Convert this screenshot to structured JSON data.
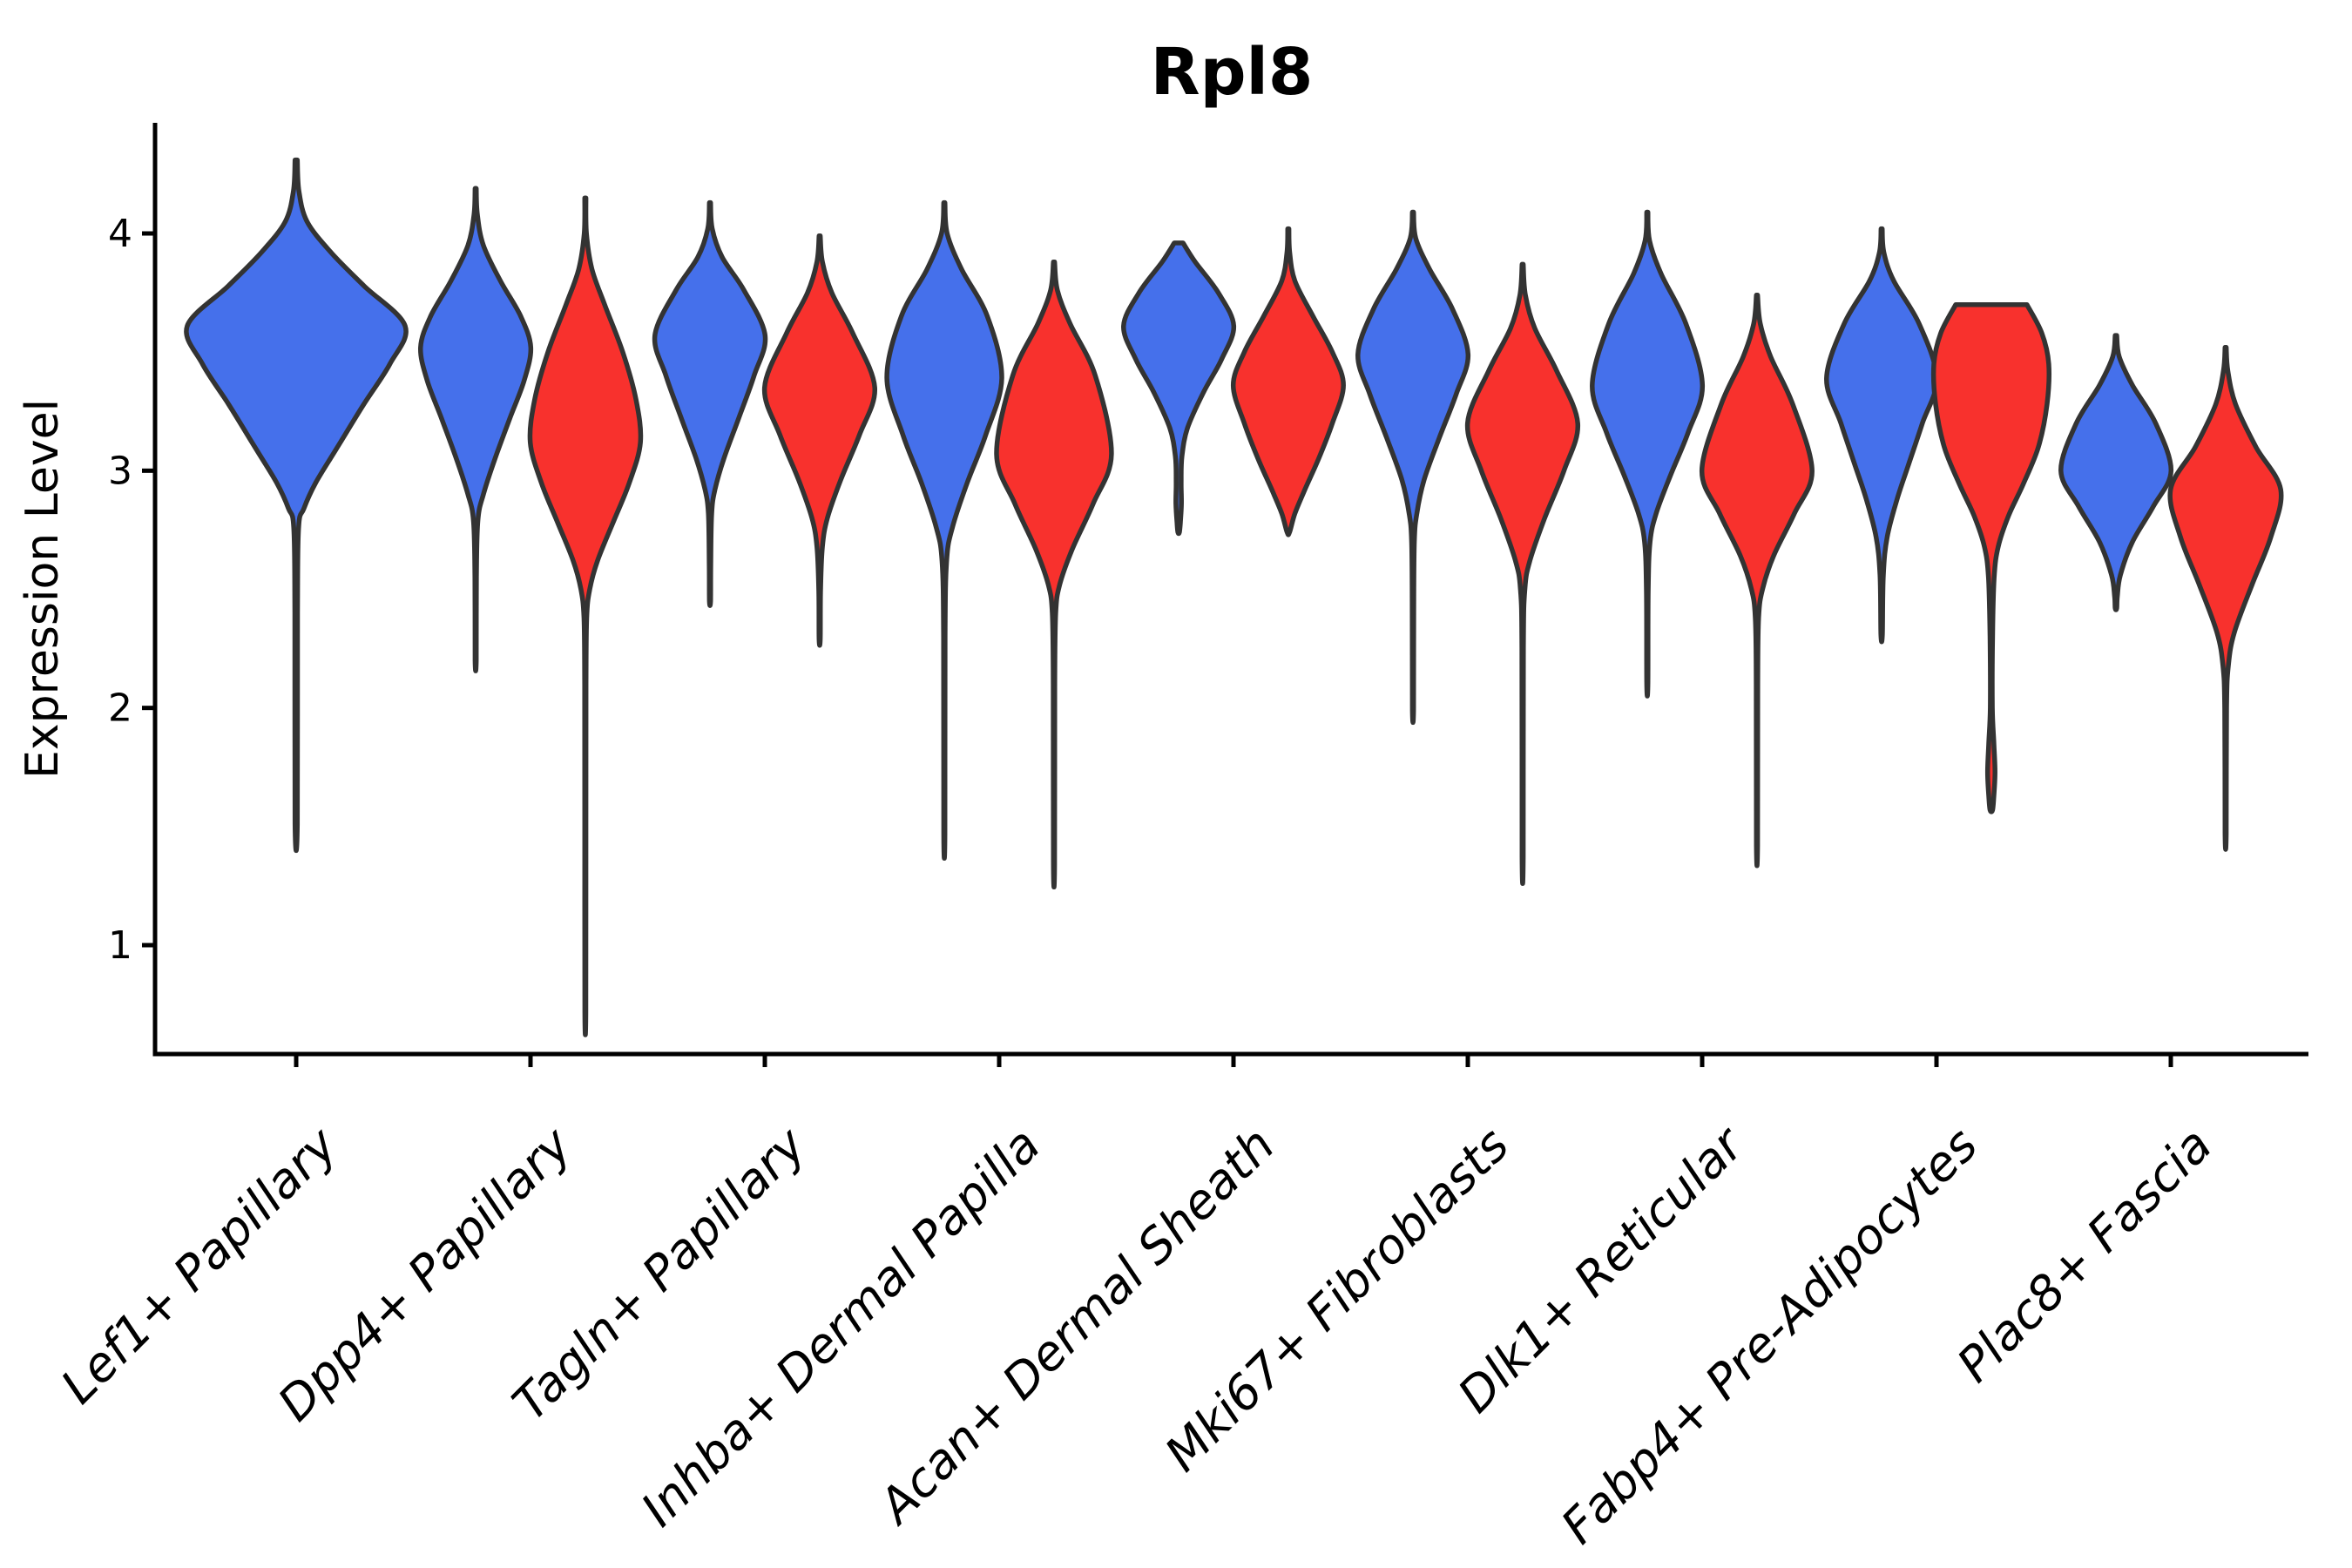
{
  "chart_data": {
    "type": "violin",
    "title": "Rpl8",
    "xlabel": "",
    "ylabel": "Expression Level",
    "yticks": [
      4,
      3,
      2,
      1
    ],
    "ylim_visible": [
      0.55,
      4.47
    ],
    "grid": false,
    "legend": "none",
    "categories": [
      "Lef1+ Papillary",
      "Dpp4+ Papillary",
      "Tagln+ Papillary",
      "Inhba+ Dermal Papilla",
      "Acan+ Dermal Sheath",
      "Mki67+ Fibroblasts",
      "Dlk1+ Reticular",
      "Fabp4+ Pre-Adipocytes",
      "Plac8+ Fascia"
    ],
    "split_colors": {
      "blue": "#4570EB",
      "red": "#F8312D"
    },
    "outline_color": "#333333",
    "axis_color": "#000000",
    "groups": [
      {
        "category": "Lef1+ Papillary",
        "violins": [
          {
            "split": "blue",
            "x_offset": 0.0,
            "max_halfwidth": 0.465,
            "profile": [
              [
                4.31,
                0.01
              ],
              [
                4.18,
                0.025
              ],
              [
                4.05,
                0.1
              ],
              [
                3.92,
                0.32
              ],
              [
                3.78,
                0.62
              ],
              [
                3.61,
                1.0
              ],
              [
                3.45,
                0.86
              ],
              [
                3.28,
                0.62
              ],
              [
                3.1,
                0.38
              ],
              [
                2.95,
                0.18
              ],
              [
                2.84,
                0.07
              ],
              [
                2.76,
                0.022
              ],
              [
                2.4,
                0.012
              ],
              [
                1.51,
                0.01
              ]
            ]
          }
        ]
      },
      {
        "category": "Dpp4+ Papillary",
        "violins": [
          {
            "split": "blue",
            "x_offset": -0.234,
            "max_halfwidth": 0.235,
            "profile": [
              [
                4.19,
                0.01
              ],
              [
                4.08,
                0.03
              ],
              [
                3.95,
                0.14
              ],
              [
                3.8,
                0.45
              ],
              [
                3.65,
                0.82
              ],
              [
                3.52,
                1.0
              ],
              [
                3.38,
                0.88
              ],
              [
                3.22,
                0.62
              ],
              [
                3.05,
                0.35
              ],
              [
                2.9,
                0.14
              ],
              [
                2.79,
                0.04
              ],
              [
                2.55,
                0.013
              ],
              [
                2.2,
                0.01
              ]
            ]
          },
          {
            "split": "red",
            "x_offset": 0.234,
            "max_halfwidth": 0.235,
            "profile": [
              [
                4.15,
                0.01
              ],
              [
                4.0,
                0.02
              ],
              [
                3.85,
                0.12
              ],
              [
                3.7,
                0.35
              ],
              [
                3.5,
                0.68
              ],
              [
                3.3,
                0.92
              ],
              [
                3.12,
                1.0
              ],
              [
                2.95,
                0.8
              ],
              [
                2.78,
                0.5
              ],
              [
                2.62,
                0.22
              ],
              [
                2.5,
                0.08
              ],
              [
                2.38,
                0.025
              ],
              [
                2.1,
                0.012
              ],
              [
                1.5,
                0.01
              ],
              [
                0.72,
                0.009
              ]
            ]
          }
        ]
      },
      {
        "category": "Tagln+ Papillary",
        "violins": [
          {
            "split": "blue",
            "x_offset": -0.234,
            "max_halfwidth": 0.235,
            "profile": [
              [
                4.13,
                0.01
              ],
              [
                4.02,
                0.04
              ],
              [
                3.9,
                0.22
              ],
              [
                3.76,
                0.62
              ],
              [
                3.57,
                1.0
              ],
              [
                3.4,
                0.8
              ],
              [
                3.22,
                0.52
              ],
              [
                3.05,
                0.25
              ],
              [
                2.92,
                0.09
              ],
              [
                2.82,
                0.03
              ],
              [
                2.6,
                0.013
              ],
              [
                2.45,
                0.01
              ]
            ]
          },
          {
            "split": "red",
            "x_offset": 0.234,
            "max_halfwidth": 0.235,
            "profile": [
              [
                3.99,
                0.01
              ],
              [
                3.88,
                0.05
              ],
              [
                3.75,
                0.22
              ],
              [
                3.58,
                0.6
              ],
              [
                3.35,
                1.0
              ],
              [
                3.15,
                0.72
              ],
              [
                2.96,
                0.38
              ],
              [
                2.8,
                0.14
              ],
              [
                2.68,
                0.05
              ],
              [
                2.5,
                0.016
              ],
              [
                2.29,
                0.01
              ]
            ]
          }
        ]
      },
      {
        "category": "Inhba+ Dermal Papilla",
        "violins": [
          {
            "split": "blue",
            "x_offset": -0.234,
            "max_halfwidth": 0.245,
            "profile": [
              [
                4.13,
                0.01
              ],
              [
                4.0,
                0.05
              ],
              [
                3.85,
                0.3
              ],
              [
                3.65,
                0.75
              ],
              [
                3.39,
                1.0
              ],
              [
                3.15,
                0.72
              ],
              [
                2.95,
                0.4
              ],
              [
                2.76,
                0.14
              ],
              [
                2.62,
                0.04
              ],
              [
                2.3,
                0.013
              ],
              [
                1.47,
                0.01
              ]
            ]
          },
          {
            "split": "red",
            "x_offset": 0.234,
            "max_halfwidth": 0.245,
            "profile": [
              [
                3.88,
                0.01
              ],
              [
                3.76,
                0.06
              ],
              [
                3.62,
                0.28
              ],
              [
                3.4,
                0.72
              ],
              [
                3.07,
                1.0
              ],
              [
                2.86,
                0.68
              ],
              [
                2.67,
                0.32
              ],
              [
                2.52,
                0.1
              ],
              [
                2.4,
                0.03
              ],
              [
                2.1,
                0.013
              ],
              [
                1.34,
                0.01
              ]
            ]
          }
        ]
      },
      {
        "category": "Acan+ Dermal Sheath",
        "violins": [
          {
            "split": "blue",
            "x_offset": -0.234,
            "max_halfwidth": 0.235,
            "profile": [
              [
                3.96,
                0.08
              ],
              [
                3.88,
                0.3
              ],
              [
                3.75,
                0.72
              ],
              [
                3.61,
                1.0
              ],
              [
                3.47,
                0.78
              ],
              [
                3.33,
                0.45
              ],
              [
                3.18,
                0.16
              ],
              [
                3.06,
                0.06
              ],
              [
                2.95,
                0.045
              ],
              [
                2.86,
                0.05
              ],
              [
                2.78,
                0.03
              ],
              [
                2.74,
                0.013
              ]
            ]
          },
          {
            "split": "red",
            "x_offset": 0.234,
            "max_halfwidth": 0.235,
            "profile": [
              [
                4.02,
                0.01
              ],
              [
                3.92,
                0.025
              ],
              [
                3.8,
                0.12
              ],
              [
                3.65,
                0.45
              ],
              [
                3.5,
                0.8
              ],
              [
                3.36,
                1.0
              ],
              [
                3.2,
                0.8
              ],
              [
                3.05,
                0.55
              ],
              [
                2.92,
                0.3
              ],
              [
                2.82,
                0.12
              ],
              [
                2.74,
                0.022
              ]
            ]
          }
        ]
      },
      {
        "category": "Mki67+ Fibroblasts",
        "violins": [
          {
            "split": "blue",
            "x_offset": -0.234,
            "max_halfwidth": 0.235,
            "profile": [
              [
                4.09,
                0.01
              ],
              [
                3.98,
                0.05
              ],
              [
                3.85,
                0.3
              ],
              [
                3.68,
                0.72
              ],
              [
                3.49,
                1.0
              ],
              [
                3.32,
                0.78
              ],
              [
                3.14,
                0.48
              ],
              [
                2.96,
                0.2
              ],
              [
                2.82,
                0.07
              ],
              [
                2.7,
                0.025
              ],
              [
                2.4,
                0.013
              ],
              [
                1.99,
                0.01
              ]
            ]
          },
          {
            "split": "red",
            "x_offset": 0.234,
            "max_halfwidth": 0.235,
            "profile": [
              [
                3.87,
                0.01
              ],
              [
                3.74,
                0.05
              ],
              [
                3.6,
                0.22
              ],
              [
                3.42,
                0.62
              ],
              [
                3.2,
                1.0
              ],
              [
                3.0,
                0.75
              ],
              [
                2.8,
                0.4
              ],
              [
                2.62,
                0.13
              ],
              [
                2.5,
                0.04
              ],
              [
                2.25,
                0.013
              ],
              [
                1.37,
                0.01
              ]
            ]
          }
        ]
      },
      {
        "category": "Dlk1+ Reticular",
        "violins": [
          {
            "split": "blue",
            "x_offset": -0.234,
            "max_halfwidth": 0.235,
            "profile": [
              [
                4.09,
                0.01
              ],
              [
                3.97,
                0.04
              ],
              [
                3.83,
                0.25
              ],
              [
                3.62,
                0.7
              ],
              [
                3.36,
                1.0
              ],
              [
                3.16,
                0.74
              ],
              [
                2.98,
                0.42
              ],
              [
                2.82,
                0.16
              ],
              [
                2.7,
                0.05
              ],
              [
                2.5,
                0.016
              ],
              [
                2.1,
                0.01
              ]
            ]
          },
          {
            "split": "red",
            "x_offset": 0.234,
            "max_halfwidth": 0.235,
            "profile": [
              [
                3.74,
                0.01
              ],
              [
                3.62,
                0.06
              ],
              [
                3.48,
                0.25
              ],
              [
                3.28,
                0.65
              ],
              [
                3.0,
                1.0
              ],
              [
                2.82,
                0.68
              ],
              [
                2.64,
                0.3
              ],
              [
                2.5,
                0.1
              ],
              [
                2.38,
                0.03
              ],
              [
                2.1,
                0.013
              ],
              [
                1.42,
                0.01
              ]
            ]
          }
        ]
      },
      {
        "category": "Fabp4+ Pre-Adipocytes",
        "violins": [
          {
            "split": "blue",
            "x_offset": -0.234,
            "max_halfwidth": 0.235,
            "profile": [
              [
                4.02,
                0.01
              ],
              [
                3.92,
                0.04
              ],
              [
                3.8,
                0.22
              ],
              [
                3.62,
                0.68
              ],
              [
                3.39,
                1.0
              ],
              [
                3.2,
                0.74
              ],
              [
                3.02,
                0.48
              ],
              [
                2.88,
                0.28
              ],
              [
                2.72,
                0.1
              ],
              [
                2.56,
                0.03
              ],
              [
                2.31,
                0.013
              ]
            ]
          },
          {
            "split": "red",
            "x_offset": 0.234,
            "max_halfwidth": 0.245,
            "profile": [
              [
                3.7,
                0.62
              ],
              [
                3.58,
                0.88
              ],
              [
                3.45,
                1.0
              ],
              [
                3.28,
                0.97
              ],
              [
                3.1,
                0.82
              ],
              [
                2.94,
                0.55
              ],
              [
                2.81,
                0.3
              ],
              [
                2.68,
                0.12
              ],
              [
                2.55,
                0.05
              ],
              [
                2.3,
                0.022
              ],
              [
                2.0,
                0.018
              ],
              [
                1.85,
                0.045
              ],
              [
                1.73,
                0.065
              ],
              [
                1.63,
                0.045
              ],
              [
                1.57,
                0.022
              ]
            ]
          }
        ]
      },
      {
        "category": "Plac8+ Fascia",
        "violins": [
          {
            "split": "blue",
            "x_offset": -0.234,
            "max_halfwidth": 0.235,
            "profile": [
              [
                3.57,
                0.013
              ],
              [
                3.48,
                0.06
              ],
              [
                3.36,
                0.3
              ],
              [
                3.2,
                0.72
              ],
              [
                3.0,
                1.0
              ],
              [
                2.85,
                0.68
              ],
              [
                2.7,
                0.3
              ],
              [
                2.56,
                0.08
              ],
              [
                2.47,
                0.025
              ],
              [
                2.42,
                0.013
              ]
            ]
          },
          {
            "split": "red",
            "x_offset": 0.234,
            "max_halfwidth": 0.235,
            "profile": [
              [
                3.52,
                0.01
              ],
              [
                3.42,
                0.04
              ],
              [
                3.28,
                0.18
              ],
              [
                3.1,
                0.55
              ],
              [
                2.92,
                1.0
              ],
              [
                2.72,
                0.82
              ],
              [
                2.52,
                0.48
              ],
              [
                2.32,
                0.16
              ],
              [
                2.18,
                0.05
              ],
              [
                2.0,
                0.016
              ],
              [
                1.47,
                0.01
              ]
            ]
          }
        ]
      }
    ]
  }
}
